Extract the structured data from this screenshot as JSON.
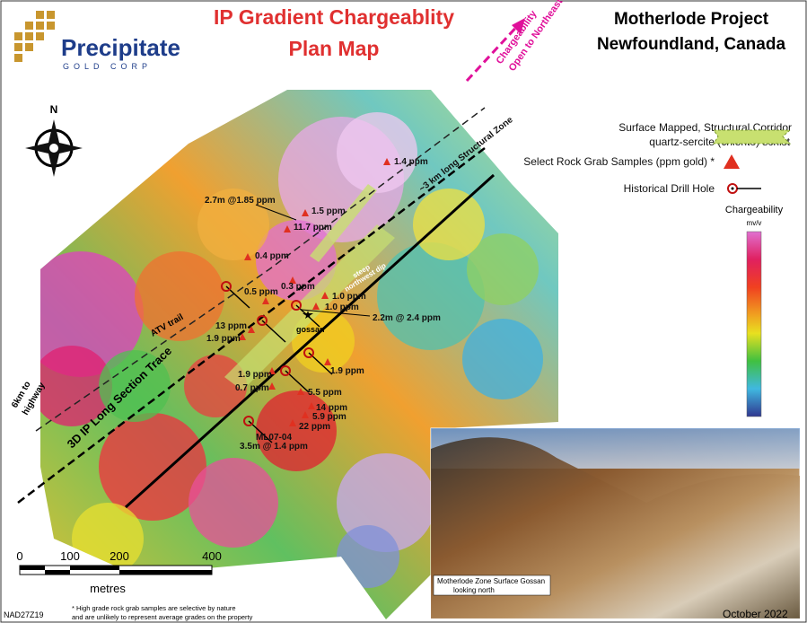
{
  "header": {
    "title_line1": "IP Gradient Chargeablity",
    "title_line2": "Plan Map",
    "project_line1": "Motherlode Project",
    "project_line2": "Newfoundland, Canada"
  },
  "logo": {
    "name": "Precipitate",
    "sub": "GOLD CORP"
  },
  "compass": "N",
  "legend": {
    "corridor_line1": "Surface Mapped, Structural Corridor",
    "corridor_line2": "quartz-sercite (chlorite) schist",
    "samples": "Select Rock Grab Samples (ppm gold) *",
    "drill_hole": "Historical Drill Hole",
    "scale_title": "Chargeability",
    "scale_unit": "mv/v"
  },
  "map_labels": [
    "Chargeability",
    "Open to Northeast",
    "~3 km long Structural Zone",
    "3D IP Long Section Trace",
    "ATV trail",
    "6km to",
    "highway",
    "steep",
    "northwest dip",
    "gossan"
  ],
  "samples": [
    "1.4 ppm",
    "1.5 ppm",
    "11.7 ppm",
    "0.4 ppm",
    "0.3 ppm",
    "0.5 ppm",
    "1.0 ppm",
    "1.0 ppm",
    "13 ppm",
    "1.9 ppm",
    "1.9 ppm",
    "1.9 ppm",
    "0.7 ppm",
    "5.5 ppm",
    "14 ppm",
    "5.9 ppm",
    "22 ppm"
  ],
  "drill_labels": [
    "2.7m @1.85 ppm",
    "2.2m @ 2.4 ppm",
    "ML07-04",
    "3.5m @ 1.4 ppm"
  ],
  "scale_bar": {
    "ticks": [
      "0",
      "100",
      "200",
      "400"
    ],
    "unit": "metres"
  },
  "photo_caption": [
    "Motherlode Zone Surface Gossan",
    "looking north"
  ],
  "footer": {
    "datum": "NAD27Z19",
    "note_line1": "* High grade rock grab samples are selective by nature",
    "note_line2": "and are unlikely to represent average grades on the property",
    "date": "October 2022"
  }
}
